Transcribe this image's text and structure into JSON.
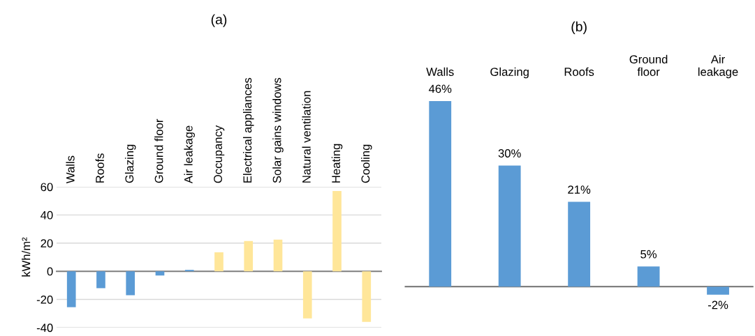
{
  "chart_data": [
    {
      "type": "bar",
      "title": "(a)",
      "ylabel": "kWh/m²",
      "categories": [
        "Walls",
        "Roofs",
        "Glazing",
        "Ground floor",
        "Air leakage",
        "Occupancy",
        "Electrical appliances",
        "Solar gains windows",
        "Natural ventilation",
        "Heating",
        "Cooling"
      ],
      "values": [
        -25.5,
        -12,
        -17,
        -3,
        1,
        13.5,
        21.5,
        22.5,
        -33.5,
        57,
        -36
      ],
      "colors": [
        "#5b9bd5",
        "#5b9bd5",
        "#5b9bd5",
        "#5b9bd5",
        "#5b9bd5",
        "#ffe699",
        "#ffe699",
        "#ffe699",
        "#ffe699",
        "#ffe699",
        "#ffe699"
      ],
      "ylim": [
        -40,
        60
      ],
      "yticks": [
        -40,
        -20,
        0,
        20,
        40,
        60
      ],
      "grid": "y"
    },
    {
      "type": "bar",
      "title": "(b)",
      "categories": [
        "Walls",
        "Glazing",
        "Roofs",
        "Ground floor",
        "Air leakage"
      ],
      "values": [
        46,
        30,
        21,
        5,
        -2
      ],
      "color": "#5b9bd5",
      "value_labels": [
        "46%",
        "30%",
        "21%",
        "5%",
        "-2%"
      ]
    }
  ]
}
